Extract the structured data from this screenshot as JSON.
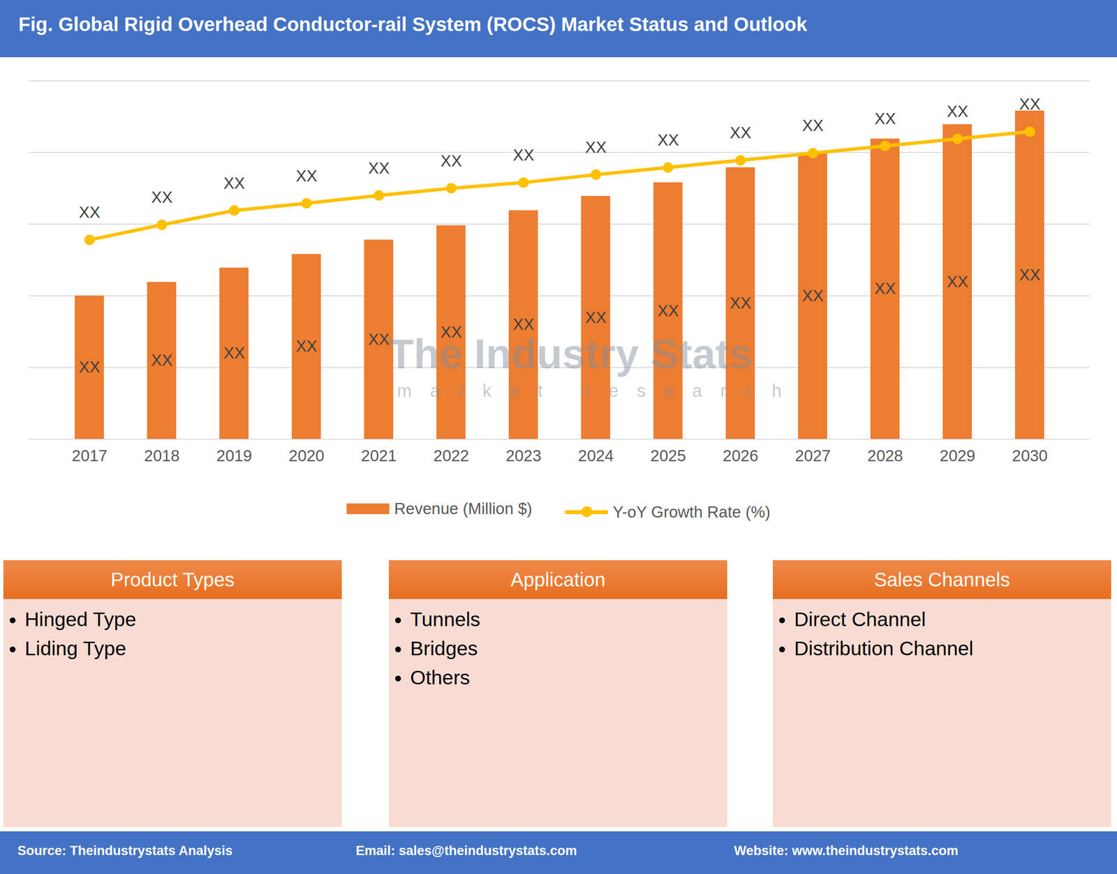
{
  "chart_data": {
    "type": "bar",
    "title": "Fig. Global Rigid Overhead Conductor-rail System (ROCS) Market Status and Outlook",
    "categories": [
      "2017",
      "2018",
      "2019",
      "2020",
      "2021",
      "2022",
      "2023",
      "2024",
      "2025",
      "2026",
      "2027",
      "2028",
      "2029",
      "2030"
    ],
    "series": [
      {
        "name": "Revenue (Million $)",
        "type": "bar",
        "color": "#ed7d31",
        "values": [
          2.0,
          2.19,
          2.39,
          2.58,
          2.78,
          2.98,
          3.19,
          3.39,
          3.58,
          3.79,
          3.99,
          4.19,
          4.39,
          4.58
        ],
        "value_labels": [
          "XX",
          "XX",
          "XX",
          "XX",
          "XX",
          "XX",
          "XX",
          "XX",
          "XX",
          "XX",
          "XX",
          "XX",
          "XX",
          "XX"
        ]
      },
      {
        "name": "Y-oY Growth Rate (%)",
        "type": "line",
        "color": "#ffc000",
        "marker": "circle",
        "values": [
          2.78,
          2.99,
          3.19,
          3.29,
          3.4,
          3.5,
          3.58,
          3.69,
          3.79,
          3.89,
          3.99,
          4.09,
          4.19,
          4.29
        ],
        "value_labels": [
          "XX",
          "XX",
          "XX",
          "XX",
          "XX",
          "XX",
          "XX",
          "XX",
          "XX",
          "XX",
          "XX",
          "XX",
          "XX",
          "XX"
        ]
      }
    ],
    "ylim": [
      0,
      5
    ],
    "yticks": [
      0,
      1,
      2,
      3,
      4,
      5
    ],
    "grid": true,
    "tick_labels": "x",
    "data_labels": true,
    "legend": "bottom"
  },
  "watermark": {
    "title": "The Industry Stats",
    "subtitle": "market research"
  },
  "panels": [
    {
      "title": "Product Types",
      "items": [
        "Hinged Type",
        "Liding Type"
      ]
    },
    {
      "title": "Application",
      "items": [
        "Tunnels",
        "Bridges",
        "Others"
      ]
    },
    {
      "title": "Sales Channels",
      "items": [
        "Direct Channel",
        "Distribution Channel"
      ]
    }
  ],
  "footer": [
    "Source: Theindustrystats Analysis",
    "Email: sales@theindustrystats.com",
    "Website: www.theindustrystats.com"
  ]
}
